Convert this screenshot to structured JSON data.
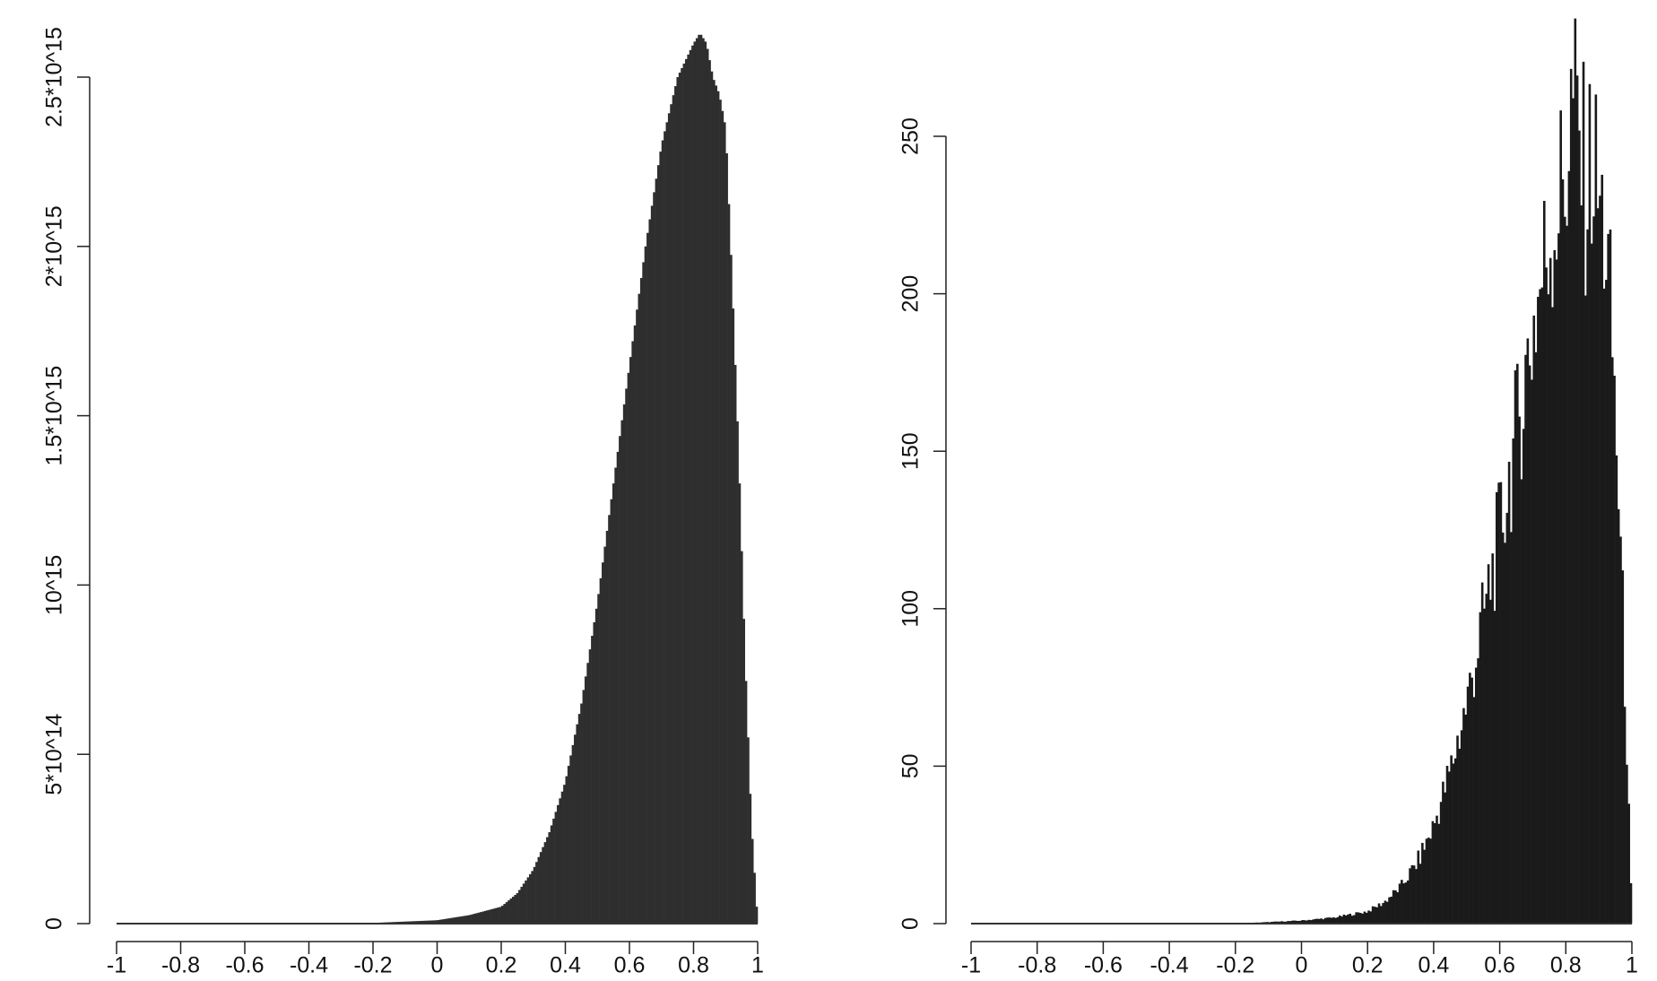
{
  "chart_data": [
    {
      "type": "bar",
      "title": "",
      "xlabel": "",
      "ylabel": "",
      "xlim": [
        -1,
        1
      ],
      "ylim": [
        0,
        2500000000000000.0
      ],
      "bar_color": "#2e2e2e",
      "grid": false,
      "legend": "none",
      "x_ticks": [
        {
          "value": -1,
          "label": "-1"
        },
        {
          "value": -0.8,
          "label": "-0.8"
        },
        {
          "value": -0.6,
          "label": "-0.6"
        },
        {
          "value": -0.4,
          "label": "-0.4"
        },
        {
          "value": -0.2,
          "label": "-0.2"
        },
        {
          "value": 0,
          "label": "0"
        },
        {
          "value": 0.2,
          "label": "0.2"
        },
        {
          "value": 0.4,
          "label": "0.4"
        },
        {
          "value": 0.6,
          "label": "0.6"
        },
        {
          "value": 0.8,
          "label": "0.8"
        },
        {
          "value": 1,
          "label": "1"
        }
      ],
      "y_ticks": [
        {
          "value": 0,
          "label": "0"
        },
        {
          "value": 500000000000000.0,
          "label": "5*10^14"
        },
        {
          "value": 1000000000000000.0,
          "label": "10^15"
        },
        {
          "value": 1500000000000000.0,
          "label": "1.5*10^15"
        },
        {
          "value": 2000000000000000.0,
          "label": "2*10^15"
        },
        {
          "value": 2500000000000000.0,
          "label": "2.5*10^15"
        }
      ],
      "x": [
        -1.0,
        -0.6,
        -0.2,
        0.0,
        0.1,
        0.2,
        0.25,
        0.3,
        0.35,
        0.4,
        0.45,
        0.5,
        0.55,
        0.6,
        0.65,
        0.7,
        0.75,
        0.8,
        0.82,
        0.84,
        0.86,
        0.88,
        0.9,
        0.92,
        0.94,
        0.96,
        0.98,
        1.0
      ],
      "values": [
        0,
        0,
        2000000000000.0,
        10000000000000.0,
        25000000000000.0,
        50000000000000.0,
        90000000000000.0,
        160000000000000.0,
        270000000000000.0,
        420000000000000.0,
        650000000000000.0,
        950000000000000.0,
        1300000000000000.0,
        1650000000000000.0,
        2000000000000000.0,
        2300000000000000.0,
        2500000000000000.0,
        2600000000000000.0,
        2630000000000000.0,
        2600000000000000.0,
        2500000000000000.0,
        2450000000000000.0,
        2350000000000000.0,
        1900000000000000.0,
        1400000000000000.0,
        800000000000000.0,
        300000000000000.0,
        0
      ]
    },
    {
      "type": "bar",
      "title": "",
      "xlabel": "",
      "ylabel": "",
      "xlim": [
        -1,
        1
      ],
      "ylim": [
        0,
        250
      ],
      "bar_color": "#1a1a1a",
      "grid": false,
      "legend": "none",
      "x_ticks": [
        {
          "value": -1,
          "label": "-1"
        },
        {
          "value": -0.8,
          "label": "-0.8"
        },
        {
          "value": -0.6,
          "label": "-0.6"
        },
        {
          "value": -0.4,
          "label": "-0.4"
        },
        {
          "value": -0.2,
          "label": "-0.2"
        },
        {
          "value": 0,
          "label": "0"
        },
        {
          "value": 0.2,
          "label": "0.2"
        },
        {
          "value": 0.4,
          "label": "0.4"
        },
        {
          "value": 0.6,
          "label": "0.6"
        },
        {
          "value": 0.8,
          "label": "0.8"
        },
        {
          "value": 1,
          "label": "1"
        }
      ],
      "y_ticks": [
        {
          "value": 0,
          "label": "0"
        },
        {
          "value": 50,
          "label": "50"
        },
        {
          "value": 100,
          "label": "100"
        },
        {
          "value": 150,
          "label": "150"
        },
        {
          "value": 200,
          "label": "200"
        },
        {
          "value": 250,
          "label": "250"
        }
      ],
      "x": [
        -1.0,
        -0.6,
        -0.2,
        0.0,
        0.1,
        0.2,
        0.25,
        0.3,
        0.35,
        0.4,
        0.45,
        0.5,
        0.55,
        0.6,
        0.65,
        0.7,
        0.75,
        0.8,
        0.82,
        0.84,
        0.86,
        0.88,
        0.9,
        0.92,
        0.94,
        0.96,
        0.98,
        1.0
      ],
      "values": [
        0,
        0,
        0,
        1,
        2,
        4,
        7,
        12,
        20,
        32,
        50,
        72,
        100,
        128,
        160,
        195,
        225,
        245,
        270,
        255,
        240,
        250,
        235,
        225,
        190,
        140,
        75,
        0
      ]
    }
  ]
}
